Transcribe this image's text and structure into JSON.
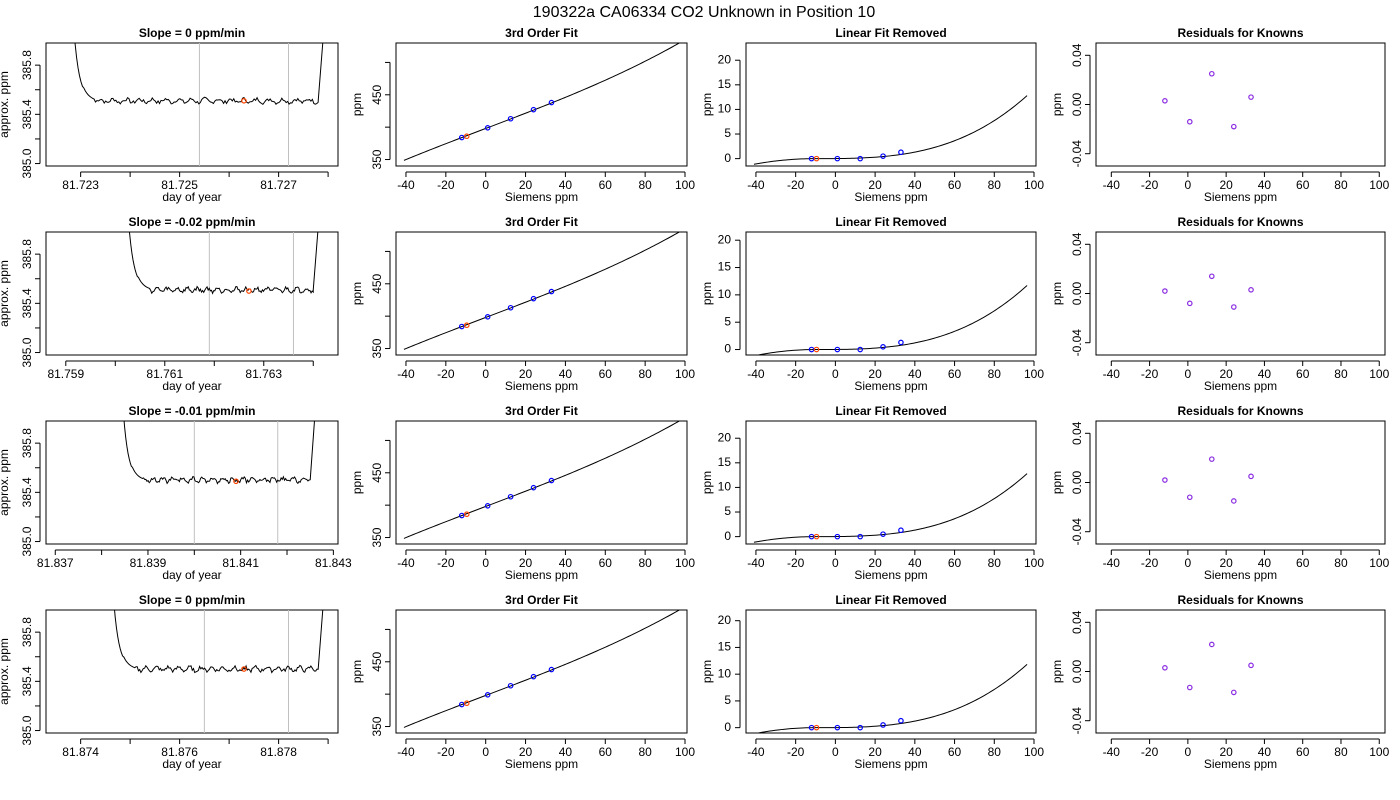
{
  "figure": {
    "title": "190322a     CA06334   CO2 Unknown in Position  10",
    "colors": {
      "axis": "#000000",
      "line": "#000000",
      "marker_known": "#0000ff",
      "marker_unknown": "#ff4500",
      "marker_residual": "#8a2be2",
      "vline": "#c0c0c0"
    }
  },
  "chart_data": [
    {
      "type": "line",
      "row": 0,
      "panel": "timeseries",
      "title": "Slope =  0  ppm/min",
      "xlabel": "day of year",
      "ylabel": "approx. ppm",
      "xlim": [
        81.7223,
        81.7282
      ],
      "ylim": [
        384.98,
        385.98
      ],
      "xticks": [
        81.723,
        81.724,
        81.725,
        81.726,
        81.727,
        81.728
      ],
      "xticklabels": [
        "81.723",
        "",
        "81.725",
        "",
        "81.727",
        ""
      ],
      "yticks": [
        385.0,
        385.2,
        385.4,
        385.6,
        385.8
      ],
      "yticklabels": [
        "385.0",
        "",
        "385.4",
        "",
        "385.8"
      ],
      "vlines": [
        81.7254,
        81.7272
      ],
      "unknown_point": {
        "x": 81.7263,
        "y": 385.51
      },
      "trace": {
        "x0": 81.7228,
        "x1": 81.7279,
        "plateau": 385.51,
        "rise_end": 81.7233,
        "drop_start": 81.7278
      }
    },
    {
      "type": "line",
      "row": 0,
      "panel": "fit",
      "title": "3rd Order Fit",
      "xlabel": "Siemens ppm",
      "ylabel": "ppm",
      "xlim": [
        -45,
        101
      ],
      "ylim": [
        340,
        530
      ],
      "xticks": [
        -40,
        -20,
        0,
        20,
        40,
        60,
        80,
        100
      ],
      "yticks": [
        350,
        400,
        450,
        500
      ],
      "yticklabels": [
        "350",
        "",
        "450",
        ""
      ],
      "curve": {
        "x0": -41,
        "x1": 97,
        "m": 1.17,
        "c": 398,
        "q": 2e-05
      },
      "knowns": [
        {
          "x": -12,
          "y": 384
        },
        {
          "x": 1,
          "y": 399
        },
        {
          "x": 12.5,
          "y": 413
        },
        {
          "x": 24,
          "y": 427
        },
        {
          "x": 33,
          "y": 438
        }
      ],
      "unknown": {
        "x": -9.5,
        "y": 386
      }
    },
    {
      "type": "line",
      "row": 0,
      "panel": "linear_removed",
      "title": "Linear Fit Removed",
      "xlabel": "Siemens ppm",
      "ylabel": "ppm",
      "xlim": [
        -45,
        101
      ],
      "ylim": [
        -1.5,
        23.5
      ],
      "xticks": [
        -40,
        -20,
        0,
        20,
        40,
        60,
        80,
        100
      ],
      "yticks": [
        0,
        5,
        10,
        15,
        20
      ],
      "curve": {
        "x0": -41,
        "x1": 96.5,
        "b": 0,
        "c": 1.06e-05
      },
      "knowns": [
        {
          "x": -12,
          "y": 0.0
        },
        {
          "x": 1,
          "y": 0.0
        },
        {
          "x": 12.5,
          "y": 0.0
        },
        {
          "x": 24,
          "y": 0.5
        },
        {
          "x": 33,
          "y": 1.3
        }
      ],
      "unknown": {
        "x": -9.5,
        "y": 0.0
      }
    },
    {
      "type": "scatter",
      "row": 0,
      "panel": "residuals",
      "title": "Residuals for Knowns",
      "xlabel": "Siemens ppm",
      "ylabel": "ppm",
      "xlim": [
        -48,
        103
      ],
      "ylim": [
        -0.05,
        0.05
      ],
      "xticks": [
        -40,
        -20,
        0,
        20,
        40,
        60,
        80,
        100
      ],
      "yticks": [
        -0.04,
        0.0,
        0.04
      ],
      "yticklabels": [
        "-0.04",
        "0.00",
        "0.04"
      ],
      "points": [
        {
          "x": -12,
          "y": 0.003
        },
        {
          "x": 1,
          "y": -0.014
        },
        {
          "x": 12.5,
          "y": 0.025
        },
        {
          "x": 24,
          "y": -0.018
        },
        {
          "x": 33,
          "y": 0.006
        }
      ]
    },
    {
      "type": "line",
      "row": 1,
      "panel": "timeseries",
      "title": "Slope =  -0.02  ppm/min",
      "xlabel": "day of year",
      "ylabel": "approx. ppm",
      "xlim": [
        81.7586,
        81.7645
      ],
      "ylim": [
        384.98,
        385.98
      ],
      "xticks": [
        81.759,
        81.76,
        81.761,
        81.762,
        81.763,
        81.764
      ],
      "xticklabels": [
        "81.759",
        "",
        "81.761",
        "",
        "81.763",
        ""
      ],
      "yticks": [
        385.0,
        385.2,
        385.4,
        385.6,
        385.8
      ],
      "yticklabels": [
        "385.0",
        "",
        "385.4",
        "",
        "385.8"
      ],
      "vlines": [
        81.7619,
        81.7636
      ],
      "unknown_point": {
        "x": 81.7627,
        "y": 385.5
      },
      "trace": {
        "x0": 81.7602,
        "x1": 81.7641,
        "plateau": 385.51,
        "rise_end": 81.7607,
        "drop_start": 81.764
      }
    },
    {
      "type": "line",
      "row": 1,
      "panel": "fit",
      "title": "3rd Order Fit",
      "xlabel": "Siemens ppm",
      "ylabel": "ppm",
      "xlim": [
        -45,
        101
      ],
      "ylim": [
        340,
        530
      ],
      "xticks": [
        -40,
        -20,
        0,
        20,
        40,
        60,
        80,
        100
      ],
      "yticks": [
        350,
        400,
        450,
        500
      ],
      "yticklabels": [
        "350",
        "",
        "450",
        ""
      ],
      "curve": {
        "x0": -41,
        "x1": 97,
        "m": 1.17,
        "c": 398,
        "q": 2e-05
      },
      "knowns": [
        {
          "x": -12,
          "y": 384
        },
        {
          "x": 1,
          "y": 399
        },
        {
          "x": 12.5,
          "y": 413
        },
        {
          "x": 24,
          "y": 427
        },
        {
          "x": 33,
          "y": 438
        }
      ],
      "unknown": {
        "x": -9.5,
        "y": 386
      }
    },
    {
      "type": "line",
      "row": 1,
      "panel": "linear_removed",
      "title": "Linear Fit Removed",
      "xlabel": "Siemens ppm",
      "ylabel": "ppm",
      "xlim": [
        -45,
        101
      ],
      "ylim": [
        -1.0,
        21.5
      ],
      "xticks": [
        -40,
        -20,
        0,
        20,
        40,
        60,
        80,
        100
      ],
      "yticks": [
        0,
        5,
        10,
        15,
        20
      ],
      "curve": {
        "x0": -41,
        "x1": 96.5,
        "b": 0,
        "c": 9.7e-06
      },
      "knowns": [
        {
          "x": -12,
          "y": 0.0
        },
        {
          "x": 1,
          "y": 0.0
        },
        {
          "x": 12.5,
          "y": 0.0
        },
        {
          "x": 24,
          "y": 0.5
        },
        {
          "x": 33,
          "y": 1.3
        }
      ],
      "unknown": {
        "x": -9.5,
        "y": 0.0
      }
    },
    {
      "type": "scatter",
      "row": 1,
      "panel": "residuals",
      "title": "Residuals for Knowns",
      "xlabel": "Siemens ppm",
      "ylabel": "ppm",
      "xlim": [
        -48,
        103
      ],
      "ylim": [
        -0.05,
        0.05
      ],
      "xticks": [
        -40,
        -20,
        0,
        20,
        40,
        60,
        80,
        100
      ],
      "yticks": [
        -0.04,
        0.0,
        0.04
      ],
      "yticklabels": [
        "-0.04",
        "0.00",
        "0.04"
      ],
      "points": [
        {
          "x": -12,
          "y": 0.002
        },
        {
          "x": 1,
          "y": -0.008
        },
        {
          "x": 12.5,
          "y": 0.014
        },
        {
          "x": 24,
          "y": -0.011
        },
        {
          "x": 33,
          "y": 0.003
        }
      ]
    },
    {
      "type": "line",
      "row": 2,
      "panel": "timeseries",
      "title": "Slope =  -0.01  ppm/min",
      "xlabel": "day of year",
      "ylabel": "approx. ppm",
      "xlim": [
        81.8368,
        81.8431
      ],
      "ylim": [
        384.98,
        385.98
      ],
      "xticks": [
        81.837,
        81.838,
        81.839,
        81.84,
        81.841,
        81.842,
        81.843
      ],
      "xticklabels": [
        "81.837",
        "",
        "81.839",
        "",
        "81.841",
        "",
        "81.843"
      ],
      "yticks": [
        385.0,
        385.2,
        385.4,
        385.6,
        385.8
      ],
      "yticklabels": [
        "385.0",
        "",
        "385.4",
        "",
        "385.8"
      ],
      "vlines": [
        81.84,
        81.8418
      ],
      "unknown_point": {
        "x": 81.8409,
        "y": 385.49
      },
      "trace": {
        "x0": 81.8384,
        "x1": 81.8426,
        "plateau": 385.5,
        "rise_end": 81.8389,
        "drop_start": 81.8425
      }
    },
    {
      "type": "line",
      "row": 2,
      "panel": "fit",
      "title": "3rd Order Fit",
      "xlabel": "Siemens ppm",
      "ylabel": "ppm",
      "xlim": [
        -45,
        101
      ],
      "ylim": [
        340,
        530
      ],
      "xticks": [
        -40,
        -20,
        0,
        20,
        40,
        60,
        80,
        100
      ],
      "yticks": [
        350,
        400,
        450,
        500
      ],
      "yticklabels": [
        "350",
        "",
        "450",
        ""
      ],
      "curve": {
        "x0": -41,
        "x1": 97,
        "m": 1.17,
        "c": 398,
        "q": 2e-05
      },
      "knowns": [
        {
          "x": -12,
          "y": 384
        },
        {
          "x": 1,
          "y": 399
        },
        {
          "x": 12.5,
          "y": 413
        },
        {
          "x": 24,
          "y": 427
        },
        {
          "x": 33,
          "y": 438
        }
      ],
      "unknown": {
        "x": -9.5,
        "y": 386
      }
    },
    {
      "type": "line",
      "row": 2,
      "panel": "linear_removed",
      "title": "Linear Fit Removed",
      "xlabel": "Siemens ppm",
      "ylabel": "ppm",
      "xlim": [
        -45,
        101
      ],
      "ylim": [
        -1.5,
        23.5
      ],
      "xticks": [
        -40,
        -20,
        0,
        20,
        40,
        60,
        80,
        100
      ],
      "yticks": [
        0,
        5,
        10,
        15,
        20
      ],
      "curve": {
        "x0": -41,
        "x1": 96.5,
        "b": 0,
        "c": 1.06e-05
      },
      "knowns": [
        {
          "x": -12,
          "y": 0.0
        },
        {
          "x": 1,
          "y": 0.0
        },
        {
          "x": 12.5,
          "y": 0.0
        },
        {
          "x": 24,
          "y": 0.5
        },
        {
          "x": 33,
          "y": 1.3
        }
      ],
      "unknown": {
        "x": -9.5,
        "y": 0.0
      }
    },
    {
      "type": "scatter",
      "row": 2,
      "panel": "residuals",
      "title": "Residuals for Knowns",
      "xlabel": "Siemens ppm",
      "ylabel": "ppm",
      "xlim": [
        -48,
        103
      ],
      "ylim": [
        -0.05,
        0.05
      ],
      "xticks": [
        -40,
        -20,
        0,
        20,
        40,
        60,
        80,
        100
      ],
      "yticks": [
        -0.04,
        0.0,
        0.04
      ],
      "yticklabels": [
        "-0.04",
        "0.00",
        "0.04"
      ],
      "points": [
        {
          "x": -12,
          "y": 0.002
        },
        {
          "x": 1,
          "y": -0.012
        },
        {
          "x": 12.5,
          "y": 0.019
        },
        {
          "x": 24,
          "y": -0.015
        },
        {
          "x": 33,
          "y": 0.005
        }
      ]
    },
    {
      "type": "line",
      "row": 3,
      "panel": "timeseries",
      "title": "Slope =  0  ppm/min",
      "xlabel": "day of year",
      "ylabel": "approx. ppm",
      "xlim": [
        81.8733,
        81.8792
      ],
      "ylim": [
        384.98,
        385.98
      ],
      "xticks": [
        81.874,
        81.875,
        81.876,
        81.877,
        81.878,
        81.879
      ],
      "xticklabels": [
        "81.874",
        "",
        "81.876",
        "",
        "81.878",
        ""
      ],
      "yticks": [
        385.0,
        385.2,
        385.4,
        385.6,
        385.8
      ],
      "yticklabels": [
        "385.0",
        "",
        "385.4",
        "",
        "385.8"
      ],
      "vlines": [
        81.8765,
        81.8782
      ],
      "unknown_point": {
        "x": 81.8773,
        "y": 385.5
      },
      "trace": {
        "x0": 81.8746,
        "x1": 81.8789,
        "plateau": 385.5,
        "rise_end": 81.8751,
        "drop_start": 81.8788
      }
    },
    {
      "type": "line",
      "row": 3,
      "panel": "fit",
      "title": "3rd Order Fit",
      "xlabel": "Siemens ppm",
      "ylabel": "ppm",
      "xlim": [
        -45,
        101
      ],
      "ylim": [
        340,
        530
      ],
      "xticks": [
        -40,
        -20,
        0,
        20,
        40,
        60,
        80,
        100
      ],
      "yticks": [
        350,
        400,
        450,
        500
      ],
      "yticklabels": [
        "350",
        "",
        "450",
        ""
      ],
      "curve": {
        "x0": -41,
        "x1": 97,
        "m": 1.17,
        "c": 398,
        "q": 2e-05
      },
      "knowns": [
        {
          "x": -12,
          "y": 384
        },
        {
          "x": 1,
          "y": 399
        },
        {
          "x": 12.5,
          "y": 413
        },
        {
          "x": 24,
          "y": 427
        },
        {
          "x": 33,
          "y": 438
        }
      ],
      "unknown": {
        "x": -9.5,
        "y": 386
      }
    },
    {
      "type": "line",
      "row": 3,
      "panel": "linear_removed",
      "title": "Linear Fit Removed",
      "xlabel": "Siemens ppm",
      "ylabel": "ppm",
      "xlim": [
        -45,
        101
      ],
      "ylim": [
        -1.0,
        22.0
      ],
      "xticks": [
        -40,
        -20,
        0,
        20,
        40,
        60,
        80,
        100
      ],
      "yticks": [
        0,
        5,
        10,
        15,
        20
      ],
      "curve": {
        "x0": -41,
        "x1": 96.5,
        "b": 0,
        "c": 9.8e-06
      },
      "knowns": [
        {
          "x": -12,
          "y": 0.0
        },
        {
          "x": 1,
          "y": 0.0
        },
        {
          "x": 12.5,
          "y": 0.0
        },
        {
          "x": 24,
          "y": 0.5
        },
        {
          "x": 33,
          "y": 1.3
        }
      ],
      "unknown": {
        "x": -9.5,
        "y": 0.0
      }
    },
    {
      "type": "scatter",
      "row": 3,
      "panel": "residuals",
      "title": "Residuals for Knowns",
      "xlabel": "Siemens ppm",
      "ylabel": "ppm",
      "xlim": [
        -48,
        103
      ],
      "ylim": [
        -0.05,
        0.05
      ],
      "xticks": [
        -40,
        -20,
        0,
        20,
        40,
        60,
        80,
        100
      ],
      "yticks": [
        -0.04,
        0.0,
        0.04
      ],
      "yticklabels": [
        "-0.04",
        "0.00",
        "0.04"
      ],
      "points": [
        {
          "x": -12,
          "y": 0.003
        },
        {
          "x": 1,
          "y": -0.013
        },
        {
          "x": 12.5,
          "y": 0.022
        },
        {
          "x": 24,
          "y": -0.017
        },
        {
          "x": 33,
          "y": 0.005
        }
      ]
    }
  ]
}
